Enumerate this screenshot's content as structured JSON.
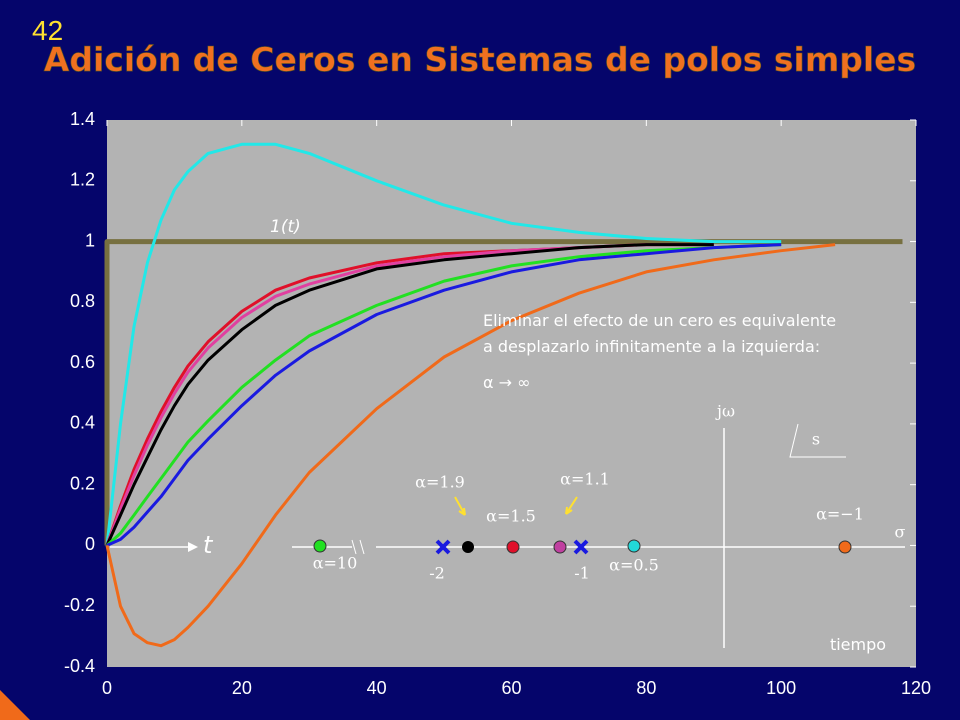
{
  "page_number": "42",
  "title": "Adición de Ceros en Sistemas de polos simples",
  "chart_data": {
    "type": "line",
    "x": [
      0,
      2,
      4,
      6,
      8,
      10,
      12,
      15,
      20,
      25,
      30,
      40,
      50,
      60,
      70,
      80,
      90,
      100,
      108
    ],
    "xlim": [
      0,
      120
    ],
    "xticks": [
      0,
      20,
      40,
      60,
      80,
      100,
      120
    ],
    "ylim": [
      -0.4,
      1.4
    ],
    "yticks": [
      -0.4,
      -0.2,
      0,
      0.2,
      0.4,
      0.6,
      0.8,
      1,
      1.2,
      1.4
    ],
    "series": [
      {
        "name": "1(t)",
        "color": "#777040",
        "x": [
          0,
          0,
          118
        ],
        "values": [
          0,
          1,
          1
        ]
      },
      {
        "color": "#22e8e8",
        "values": [
          0,
          0.4,
          0.72,
          0.93,
          1.07,
          1.17,
          1.23,
          1.29,
          1.32,
          1.32,
          1.29,
          1.2,
          1.12,
          1.06,
          1.03,
          1.01,
          1.0,
          1.0,
          null
        ]
      },
      {
        "color": "#e0102a",
        "values": [
          0,
          0.13,
          0.25,
          0.35,
          0.44,
          0.52,
          0.59,
          0.67,
          0.77,
          0.84,
          0.88,
          0.93,
          0.96,
          0.97,
          0.98,
          0.99,
          0.99,
          null,
          null
        ]
      },
      {
        "color": "#e040a0",
        "values": [
          0,
          0.12,
          0.23,
          0.33,
          0.42,
          0.5,
          0.57,
          0.65,
          0.75,
          0.82,
          0.86,
          0.92,
          0.95,
          0.97,
          0.98,
          0.99,
          0.99,
          null,
          null
        ]
      },
      {
        "color": "#000000",
        "values": [
          0,
          0.1,
          0.2,
          0.29,
          0.38,
          0.46,
          0.53,
          0.61,
          0.71,
          0.79,
          0.84,
          0.91,
          0.94,
          0.96,
          0.98,
          0.99,
          0.99,
          null,
          null
        ]
      },
      {
        "color": "#22e022",
        "values": [
          0,
          0.04,
          0.1,
          0.16,
          0.22,
          0.28,
          0.34,
          0.41,
          0.52,
          0.61,
          0.69,
          0.79,
          0.87,
          0.92,
          0.95,
          0.97,
          0.98,
          0.99,
          null
        ]
      },
      {
        "color": "#1a1ae0",
        "values": [
          0,
          0.02,
          0.06,
          0.11,
          0.16,
          0.22,
          0.28,
          0.35,
          0.46,
          0.56,
          0.64,
          0.76,
          0.84,
          0.9,
          0.94,
          0.96,
          0.98,
          0.99,
          null
        ]
      },
      {
        "color": "#f06a1a",
        "values": [
          0,
          -0.2,
          -0.29,
          -0.32,
          -0.33,
          -0.31,
          -0.27,
          -0.2,
          -0.06,
          0.1,
          0.24,
          0.45,
          0.62,
          0.74,
          0.83,
          0.9,
          0.94,
          0.97,
          0.99
        ]
      }
    ],
    "annotations": {
      "t": "t",
      "note": [
        "Eliminar el efecto de un cero es equivalente",
        "a desplazarlo infinitamente a la izquierda:",
        "α → ∞"
      ],
      "x_label": "tiempo"
    }
  },
  "inset": {
    "imag_axis": "jω",
    "plane": "s",
    "real_axis": "σ",
    "labels": [
      "α=10",
      "-2",
      "α=1.9",
      "α=1.5",
      "α=1.1",
      "-1",
      "α=0.5",
      "α=−1"
    ]
  }
}
